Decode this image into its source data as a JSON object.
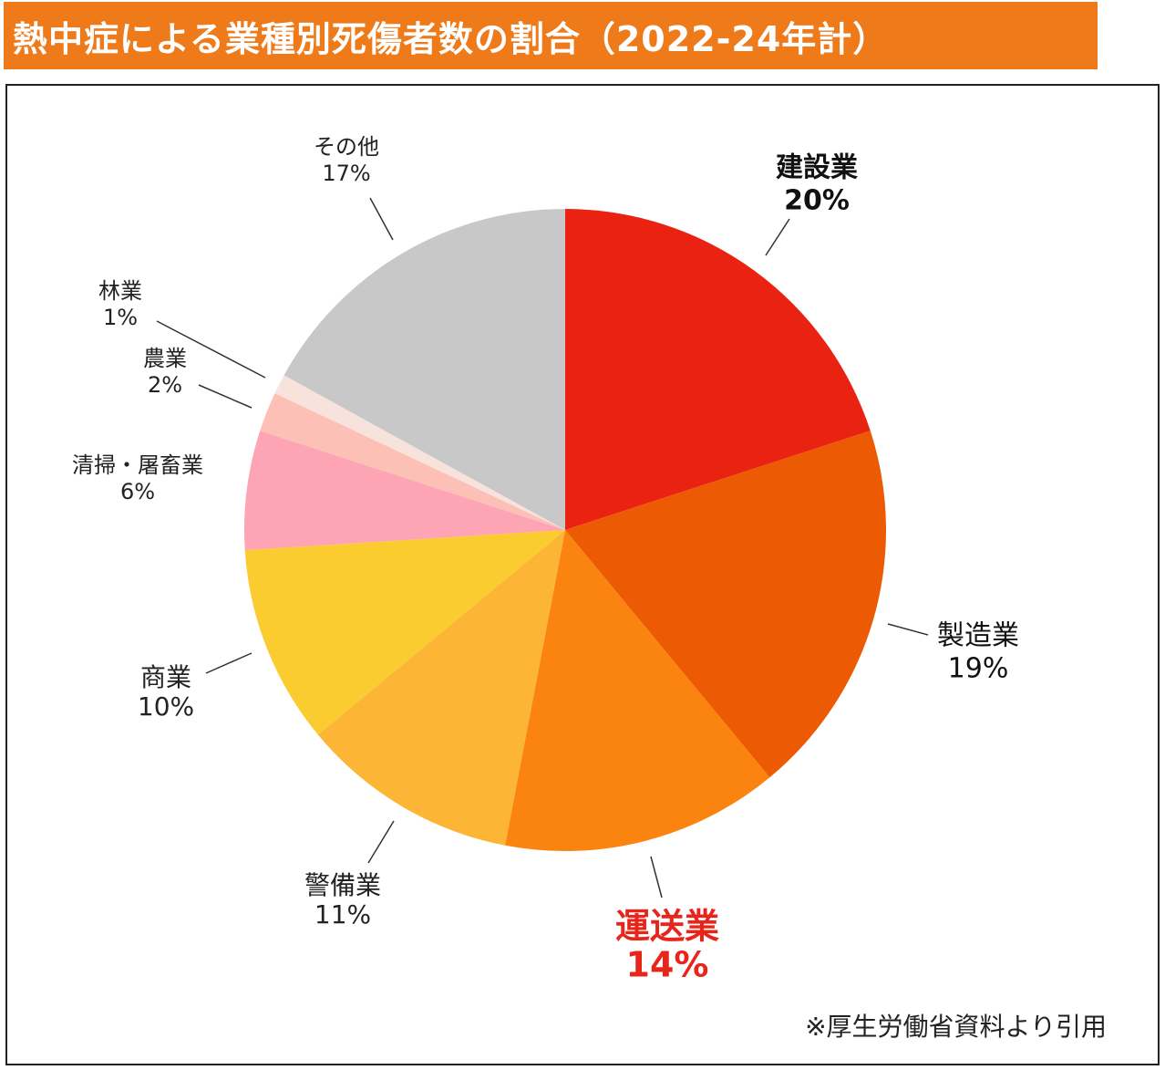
{
  "title": "熱中症による業種別死傷者数の割合（2022-24年計）",
  "source_note": "※厚生労働省資料より引用",
  "colors": {
    "title_bar": "#ee7a1a",
    "highlight_label": "#e8251a"
  },
  "chart_data": {
    "type": "pie",
    "title": "熱中症による業種別死傷者数の割合（2022-24年計）",
    "start_angle_deg": 0,
    "direction": "clockwise",
    "slices": [
      {
        "label": "建設業",
        "value": 20,
        "value_label": "20%",
        "color": "#ea2211",
        "emphasis": "bold"
      },
      {
        "label": "製造業",
        "value": 19,
        "value_label": "19%",
        "color": "#ec5a04",
        "emphasis": "medium"
      },
      {
        "label": "運送業",
        "value": 14,
        "value_label": "14%",
        "color": "#fb8310",
        "emphasis": "highlight"
      },
      {
        "label": "警備業",
        "value": 11,
        "value_label": "11%",
        "color": "#fdb535",
        "emphasis": "normal"
      },
      {
        "label": "商業",
        "value": 10,
        "value_label": "10%",
        "color": "#fbcc2f",
        "emphasis": "normal"
      },
      {
        "label": "清掃・屠畜業",
        "value": 6,
        "value_label": "6%",
        "color": "#fda5b5",
        "emphasis": "normal"
      },
      {
        "label": "農業",
        "value": 2,
        "value_label": "2%",
        "color": "#fcc0b6",
        "emphasis": "normal"
      },
      {
        "label": "林業",
        "value": 1,
        "value_label": "1%",
        "color": "#f8e3dc",
        "emphasis": "normal"
      },
      {
        "label": "その他",
        "value": 17,
        "value_label": "17%",
        "color": "#c8c8c8",
        "emphasis": "normal"
      }
    ]
  }
}
